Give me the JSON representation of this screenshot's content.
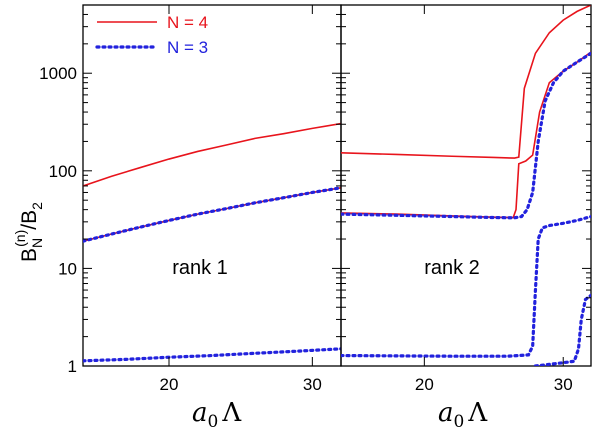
{
  "chart_data": [
    {
      "type": "line",
      "panel": "left",
      "annotation": "rank 1",
      "xlabel": "a_0 Λ",
      "ylabel": "B_N^(n)/B_2",
      "xlim": [
        14,
        32
      ],
      "ylim": [
        1,
        5000
      ],
      "yscale": "log",
      "x_ticks": [
        20,
        30
      ],
      "y_ticks": [
        1,
        10,
        100,
        1000
      ],
      "legend": {
        "position": "top-left",
        "entries": [
          {
            "label": "N = 4",
            "color": "#e8141c",
            "style": "solid"
          },
          {
            "label": "N = 3",
            "color": "#2222dd",
            "style": "dotted"
          }
        ]
      },
      "series": [
        {
          "name": "N = 4",
          "color": "#e8141c",
          "style": "solid",
          "x": [
            14,
            16,
            18,
            20,
            22,
            24,
            26,
            28,
            30,
            32
          ],
          "y": [
            70,
            88,
            108,
            132,
            158,
            184,
            215,
            240,
            272,
            305
          ]
        },
        {
          "name": "N = 4",
          "color": "#e8141c",
          "style": "solid",
          "x": [
            14,
            16,
            18,
            20,
            22,
            24,
            26,
            28,
            30,
            32
          ],
          "y": [
            19,
            22.5,
            26.5,
            31,
            36,
            41,
            47,
            53,
            60,
            67
          ]
        },
        {
          "name": "N = 3",
          "color": "#2222dd",
          "style": "dotted",
          "x": [
            14,
            16,
            18,
            20,
            22,
            24,
            26,
            28,
            30,
            32
          ],
          "y": [
            19,
            22.5,
            26.5,
            31,
            36,
            41,
            47,
            53,
            60,
            67
          ]
        },
        {
          "name": "N = 3",
          "color": "#2222dd",
          "style": "dotted",
          "x": [
            14,
            17,
            20,
            23,
            26,
            29,
            32
          ],
          "y": [
            1.13,
            1.17,
            1.23,
            1.28,
            1.35,
            1.42,
            1.5
          ]
        }
      ]
    },
    {
      "type": "line",
      "panel": "right",
      "annotation": "rank 2",
      "xlabel": "a_0 Λ",
      "xlim": [
        14,
        32
      ],
      "ylim": [
        1,
        5000
      ],
      "yscale": "log",
      "x_ticks": [
        20,
        30
      ],
      "series": [
        {
          "name": "N = 4",
          "color": "#e8141c",
          "style": "solid",
          "x": [
            14,
            18,
            22,
            25,
            26.5,
            26.8,
            27.2,
            28,
            29,
            30,
            31,
            32
          ],
          "y": [
            153,
            147,
            141,
            137,
            135,
            138,
            700,
            1600,
            2600,
            3500,
            4300,
            5000
          ]
        },
        {
          "name": "N = 4",
          "color": "#e8141c",
          "style": "solid",
          "x": [
            14,
            18,
            22,
            25,
            26.4,
            26.6,
            26.8,
            27.3,
            27.8,
            28.3,
            29,
            30,
            31,
            32
          ],
          "y": [
            37,
            36,
            34.5,
            33.5,
            33.2,
            40,
            118,
            126,
            145,
            400,
            800,
            1050,
            1300,
            1650
          ]
        },
        {
          "name": "N = 3",
          "color": "#2222dd",
          "style": "dotted",
          "x": [
            14,
            18,
            22,
            25,
            26.5,
            27,
            27.4,
            27.8,
            28.2,
            28.7,
            29.3,
            30,
            31,
            32
          ],
          "y": [
            36,
            35,
            34,
            33.2,
            33,
            34,
            40,
            60,
            200,
            520,
            800,
            1050,
            1300,
            1600
          ]
        },
        {
          "name": "N = 3",
          "color": "#2222dd",
          "style": "dotted",
          "x": [
            14,
            18,
            22,
            26,
            27.5,
            27.8,
            28,
            28.2,
            28.5,
            29,
            30,
            31,
            32
          ],
          "y": [
            1.28,
            1.27,
            1.26,
            1.26,
            1.3,
            1.6,
            6,
            20,
            26,
            27.5,
            29,
            31,
            34
          ]
        },
        {
          "name": "N = 3",
          "color": "#2222dd",
          "style": "dotted",
          "x": [
            28,
            29,
            30,
            30.8,
            31.1,
            31.3,
            31.6,
            32
          ],
          "y": [
            1.0,
            1.04,
            1.08,
            1.12,
            1.5,
            3,
            4.8,
            5.3
          ]
        }
      ]
    }
  ]
}
